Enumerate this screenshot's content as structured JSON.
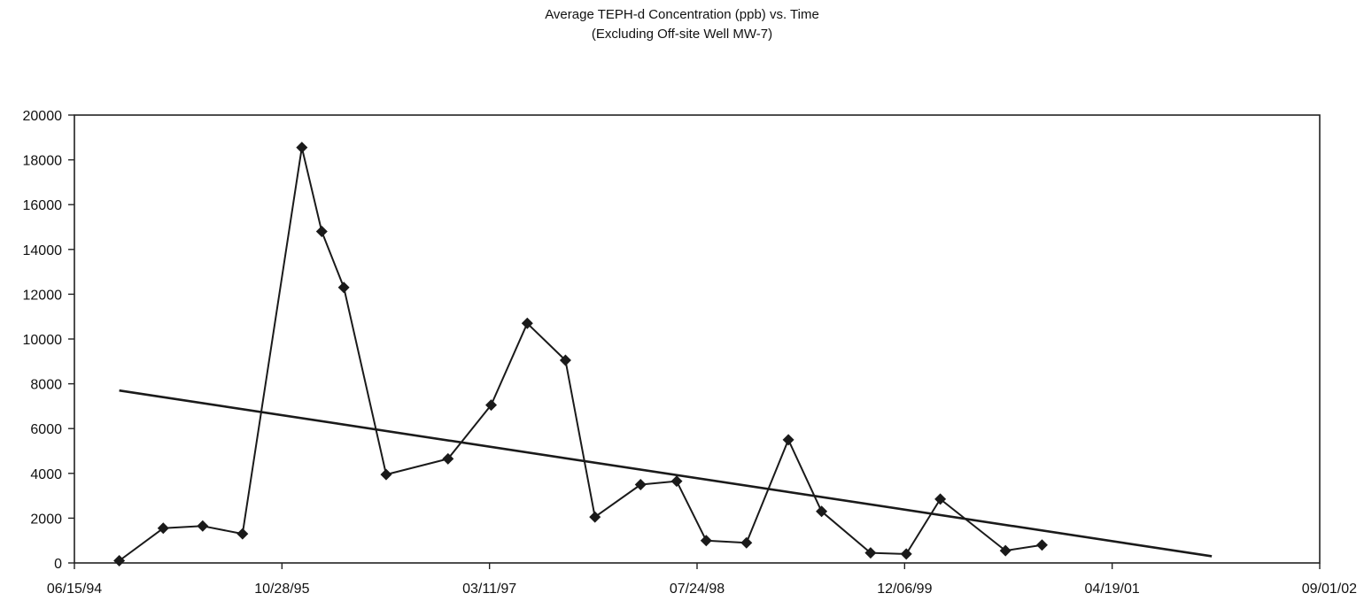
{
  "chart_data": {
    "type": "line",
    "title": "Average TEPH-d Concentration (ppb) vs. Time",
    "subtitle": "(Excluding Off-site Well MW-7)",
    "xlabel": "",
    "ylabel": "",
    "x_axis_type": "date",
    "xlim": [
      "1994-06-15",
      "2002-09-01"
    ],
    "ylim": [
      0,
      20000
    ],
    "x_tick_labels": [
      "06/15/94",
      "10/28/95",
      "03/11/97",
      "07/24/98",
      "12/06/99",
      "04/19/01",
      "09/01/02"
    ],
    "y_tick_labels": [
      "0",
      "2000",
      "4000",
      "6000",
      "8000",
      "10000",
      "12000",
      "14000",
      "16000",
      "18000",
      "20000"
    ],
    "grid": false,
    "legend": "none",
    "series": [
      {
        "marker": "diamond",
        "color": "#1a1a1a",
        "points": [
          {
            "x": "1994-10-01",
            "y": 100
          },
          {
            "x": "1995-01-15",
            "y": 1550
          },
          {
            "x": "1995-04-20",
            "y": 1650
          },
          {
            "x": "1995-07-25",
            "y": 1300
          },
          {
            "x": "1995-12-15",
            "y": 18550
          },
          {
            "x": "1996-02-01",
            "y": 14800
          },
          {
            "x": "1996-03-25",
            "y": 12300
          },
          {
            "x": "1996-07-05",
            "y": 3950
          },
          {
            "x": "1996-12-01",
            "y": 4650
          },
          {
            "x": "1997-03-15",
            "y": 7050
          },
          {
            "x": "1997-06-10",
            "y": 10700
          },
          {
            "x": "1997-09-10",
            "y": 9050
          },
          {
            "x": "1997-11-20",
            "y": 2050
          },
          {
            "x": "1998-03-10",
            "y": 3500
          },
          {
            "x": "1998-06-05",
            "y": 3650
          },
          {
            "x": "1998-08-15",
            "y": 1000
          },
          {
            "x": "1998-11-20",
            "y": 900
          },
          {
            "x": "1999-03-01",
            "y": 5500
          },
          {
            "x": "1999-05-20",
            "y": 2300
          },
          {
            "x": "1999-09-15",
            "y": 450
          },
          {
            "x": "1999-12-10",
            "y": 400
          },
          {
            "x": "2000-03-01",
            "y": 2850
          },
          {
            "x": "2000-08-05",
            "y": 550
          },
          {
            "x": "2000-11-01",
            "y": 800
          }
        ]
      }
    ],
    "trendline": {
      "type": "linear",
      "color": "#1a1a1a",
      "points": [
        {
          "x": "1994-10-01",
          "y": 7700
        },
        {
          "x": "2001-12-15",
          "y": 300
        }
      ]
    }
  }
}
